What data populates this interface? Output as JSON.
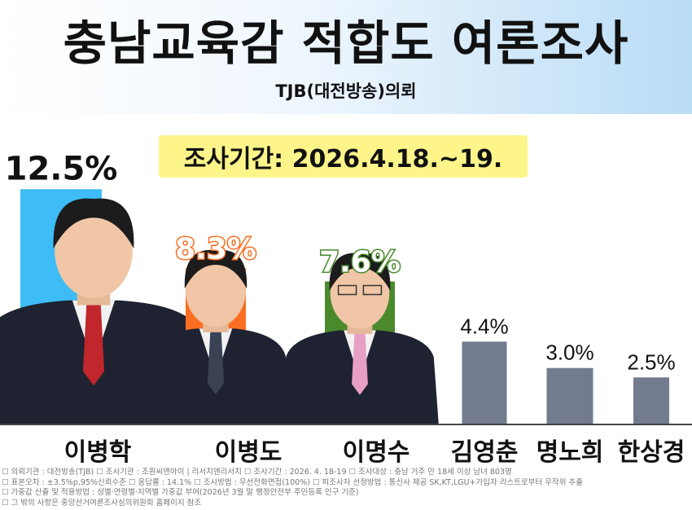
{
  "header": {
    "title": "충남교육감 적합도 여론조사",
    "subtitle": "TJB(대전방송)의뢰"
  },
  "period": "조사기간: 2026.4.18.~19.",
  "chart_data": {
    "type": "bar",
    "categories": [
      "이병학",
      "이병도",
      "이명수",
      "김영춘",
      "명노희",
      "한상경"
    ],
    "values": [
      12.5,
      8.3,
      7.6,
      4.4,
      3.0,
      2.5
    ],
    "value_labels": [
      "12.5%",
      "8.3%",
      "7.6%",
      "4.4%",
      "3.0%",
      "2.5%"
    ],
    "colors": [
      "#3dbcf6",
      "#fb6e21",
      "#4a8a2c",
      "#737b8e",
      "#737b8e",
      "#737b8e"
    ],
    "label_colors": [
      "#111111",
      "#fb6e21",
      "#4a8a2c",
      "#111111",
      "#111111",
      "#111111"
    ],
    "photos": [
      true,
      true,
      true,
      false,
      false,
      false
    ],
    "unit": "%",
    "ylim": [
      0,
      14
    ],
    "grid": false,
    "legend": "none"
  },
  "footnotes": [
    "☐ 의뢰기관 : 대전방송(TJB)   ☐ 조사기관 : 조원씨앤아이 | 리서치앤리서치   ☐ 조사기간 : 2026. 4. 18-19   ☐ 조사대상 : 충남 거주 만 18세 이상 남녀 803명",
    "☐ 표본오차 : ±3.5%p,95%신뢰수준   ☐ 응답률 : 14.1%   ☐ 조사방법 : 무선전화면접(100%)   ☐ 피조사자 선정방법 : 통신사 제공 SK,KT,LGU+가입자 리스트로부터 무작위 추출",
    "☐ 가중값 산출 및 적용방법 : 성별·연령별·지역별 가중값 부여(2026년 3월 말 행정안전부 주민등록 인구 기준)",
    "☐ 그 밖의 사항은 중앙선거여론조사심의위원회 홈페이지 참조"
  ]
}
